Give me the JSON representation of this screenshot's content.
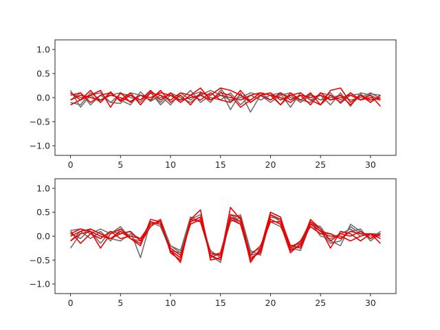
{
  "figure": {
    "background": "#ffffff"
  },
  "colors": {
    "grey_series": "#6f6f6f",
    "red_series": "#ee0000",
    "axes": "#262626"
  },
  "chart_data": [
    {
      "type": "line",
      "title": "",
      "xlabel": "",
      "ylabel": "",
      "xlim": [
        -1.55,
        32.55
      ],
      "ylim": [
        -1.2,
        1.2
      ],
      "xticks": [
        0,
        5,
        10,
        15,
        20,
        25,
        30
      ],
      "xtick_labels": [
        "0",
        "5",
        "10",
        "15",
        "20",
        "25",
        "30"
      ],
      "yticks": [
        1.0,
        0.5,
        0.0,
        -0.5,
        -1.0
      ],
      "ytick_labels": [
        "1.0",
        "0.5",
        "0.0",
        "−0.5",
        "−1.0"
      ],
      "grid": false,
      "legend": "none",
      "x": [
        0,
        1,
        2,
        3,
        4,
        5,
        6,
        7,
        8,
        9,
        10,
        11,
        12,
        13,
        14,
        15,
        16,
        17,
        18,
        19,
        20,
        21,
        22,
        23,
        24,
        25,
        26,
        27,
        28,
        29,
        30,
        31
      ],
      "series": [
        {
          "group": "grey",
          "values": [
            0.15,
            -0.2,
            0.05,
            -0.1,
            0.1,
            -0.05,
            -0.15,
            0.12,
            -0.08,
            0.05,
            -0.15,
            0.1,
            -0.05,
            0.08,
            -0.1,
            0.15,
            -0.25,
            0.1,
            -0.3,
            0.05,
            0.1,
            -0.15,
            0.05,
            -0.1,
            0.08,
            -0.05,
            0.1,
            -0.12,
            0.05,
            0.08,
            -0.1,
            0.05
          ]
        },
        {
          "group": "grey",
          "values": [
            -0.05,
            0.1,
            -0.15,
            0.05,
            -0.1,
            0.08,
            0.05,
            -0.1,
            0.12,
            -0.15,
            0.05,
            -0.05,
            0.15,
            -0.1,
            0.05,
            0.2,
            -0.1,
            0.05,
            -0.05,
            0.1,
            -0.05,
            0.08,
            -0.2,
            0.1,
            -0.05,
            0.05,
            -0.15,
            0.1,
            -0.18,
            0.1,
            0.05,
            -0.05
          ]
        },
        {
          "group": "grey",
          "values": [
            0.1,
            0.0,
            0.05,
            0.1,
            -0.1,
            -0.12,
            0.1,
            0.05,
            -0.05,
            0.0,
            0.05,
            -0.1,
            0.05,
            0.12,
            0.0,
            -0.05,
            0.1,
            -0.15,
            0.05,
            -0.05,
            0.05,
            0.1,
            0.0,
            -0.05,
            -0.1,
            0.1,
            0.05,
            -0.05,
            0.1,
            -0.05,
            0.08,
            0.05
          ]
        },
        {
          "group": "grey",
          "values": [
            -0.1,
            -0.15,
            0.1,
            -0.05,
            0.05,
            0.1,
            0.0,
            -0.05,
            0.1,
            -0.1,
            0.1,
            0.0,
            -0.1,
            0.05,
            0.15,
            0.05,
            -0.05,
            0.0,
            0.1,
            0.05,
            -0.1,
            0.05,
            0.1,
            -0.1,
            0.05,
            -0.05,
            0.0,
            0.05,
            -0.05,
            0.0,
            0.1,
            -0.02
          ]
        },
        {
          "group": "red",
          "values": [
            -0.15,
            -0.05,
            0.15,
            -0.1,
            0.12,
            -0.08,
            0.05,
            -0.05,
            0.15,
            -0.05,
            0.1,
            -0.1,
            0.05,
            0.2,
            -0.05,
            0.1,
            0.05,
            -0.2,
            -0.05,
            0.1,
            0.05,
            -0.15,
            0.1,
            -0.05,
            0.1,
            -0.15,
            0.05,
            -0.1,
            0.1,
            -0.05,
            0.05,
            -0.18
          ]
        },
        {
          "group": "red",
          "values": [
            0.1,
            -0.05,
            0.05,
            0.15,
            -0.2,
            0.1,
            -0.1,
            0.05,
            -0.05,
            0.15,
            -0.1,
            0.05,
            -0.15,
            0.1,
            0.05,
            0.2,
            0.15,
            0.05,
            -0.1,
            0.05,
            -0.05,
            0.1,
            -0.05,
            0.05,
            -0.15,
            0.1,
            -0.05,
            0.05,
            -0.15,
            0.05,
            -0.1,
            0.05
          ]
        },
        {
          "group": "red",
          "values": [
            0.05,
            0.1,
            -0.1,
            0.05,
            0.1,
            -0.05,
            0.1,
            -0.15,
            0.1,
            0.05,
            -0.05,
            0.1,
            0.05,
            -0.05,
            0.1,
            -0.05,
            -0.1,
            0.15,
            -0.1,
            0.05,
            0.1,
            -0.05,
            0.05,
            0.1,
            -0.05,
            -0.15,
            0.15,
            0.2,
            -0.1,
            0.05,
            -0.05,
            0.0
          ]
        },
        {
          "group": "red",
          "values": [
            -0.05,
            0.05,
            0.0,
            -0.05,
            0.05,
            0.0,
            -0.08,
            0.05,
            0.0,
            0.1,
            0.05,
            -0.05,
            0.0,
            0.05,
            -0.05,
            0.05,
            0.0,
            -0.05,
            0.05,
            0.1,
            0.05,
            0.0,
            -0.1,
            0.05,
            0.0,
            0.05,
            -0.05,
            0.0,
            0.05,
            -0.05,
            0.0,
            -0.05
          ]
        }
      ]
    },
    {
      "type": "line",
      "title": "",
      "xlabel": "",
      "ylabel": "",
      "xlim": [
        -1.55,
        32.55
      ],
      "ylim": [
        -1.2,
        1.2
      ],
      "xticks": [
        0,
        5,
        10,
        15,
        20,
        25,
        30
      ],
      "xtick_labels": [
        "0",
        "5",
        "10",
        "15",
        "20",
        "25",
        "30"
      ],
      "yticks": [
        1.0,
        0.5,
        0.0,
        -0.5,
        -1.0
      ],
      "ytick_labels": [
        "1.0",
        "0.5",
        "0.0",
        "−0.5",
        "−1.0"
      ],
      "grid": false,
      "legend": "none",
      "x": [
        0,
        1,
        2,
        3,
        4,
        5,
        6,
        7,
        8,
        9,
        10,
        11,
        12,
        13,
        14,
        15,
        16,
        17,
        18,
        19,
        20,
        21,
        22,
        23,
        24,
        25,
        26,
        27,
        28,
        29,
        30,
        31
      ],
      "series": [
        {
          "group": "grey",
          "values": [
            0.12,
            0.15,
            0.05,
            0.15,
            0.05,
            0.2,
            -0.05,
            -0.1,
            0.3,
            0.2,
            -0.3,
            -0.45,
            0.4,
            0.3,
            -0.4,
            -0.55,
            0.4,
            0.25,
            -0.5,
            -0.3,
            0.45,
            0.3,
            -0.3,
            -0.2,
            0.3,
            0.1,
            -0.15,
            -0.1,
            0.2,
            0.05,
            0.0,
            0.05
          ]
        },
        {
          "group": "grey",
          "values": [
            -0.25,
            0.05,
            0.1,
            -0.15,
            0.1,
            0.05,
            0.1,
            -0.45,
            0.3,
            0.25,
            -0.3,
            -0.35,
            0.35,
            0.45,
            -0.35,
            -0.4,
            0.3,
            0.4,
            -0.4,
            -0.35,
            0.5,
            0.4,
            -0.25,
            -0.3,
            0.25,
            0.2,
            -0.1,
            -0.2,
            0.25,
            0.1,
            -0.05,
            0.1
          ]
        },
        {
          "group": "grey",
          "values": [
            0.05,
            -0.05,
            0.15,
            0.05,
            -0.05,
            -0.1,
            0.05,
            -0.05,
            0.2,
            0.35,
            -0.2,
            -0.3,
            0.4,
            0.3,
            -0.3,
            -0.45,
            0.45,
            0.3,
            -0.35,
            -0.25,
            0.3,
            0.2,
            -0.2,
            -0.15,
            0.2,
            0.05,
            0.05,
            -0.05,
            0.1,
            0.15,
            -0.1,
            0.05
          ]
        },
        {
          "group": "grey",
          "values": [
            -0.1,
            0.1,
            -0.05,
            0.1,
            -0.1,
            0.15,
            0.0,
            -0.05,
            0.25,
            0.3,
            -0.2,
            -0.35,
            0.3,
            0.4,
            -0.4,
            -0.35,
            0.35,
            0.45,
            -0.3,
            -0.4,
            0.4,
            0.35,
            -0.3,
            -0.1,
            0.3,
            0.0,
            -0.05,
            0.05,
            0.15,
            0.0,
            0.05,
            0.05
          ]
        },
        {
          "group": "red",
          "values": [
            0.05,
            0.15,
            0.1,
            -0.25,
            0.05,
            0.15,
            -0.05,
            -0.2,
            0.35,
            0.3,
            -0.3,
            -0.55,
            0.35,
            0.55,
            -0.5,
            -0.45,
            0.6,
            0.35,
            -0.55,
            -0.25,
            0.5,
            0.4,
            -0.3,
            -0.2,
            0.35,
            0.15,
            -0.25,
            0.1,
            0.05,
            -0.1,
            0.05,
            -0.15
          ]
        },
        {
          "group": "red",
          "values": [
            0.0,
            0.1,
            0.15,
            0.05,
            -0.05,
            0.1,
            -0.05,
            -0.15,
            0.2,
            0.35,
            -0.35,
            -0.5,
            0.3,
            0.4,
            -0.45,
            -0.35,
            0.4,
            0.3,
            -0.5,
            -0.3,
            0.35,
            0.25,
            -0.35,
            -0.15,
            0.3,
            0.15,
            -0.1,
            0.05,
            0.0,
            0.1,
            -0.05,
            0.05
          ]
        },
        {
          "group": "red",
          "values": [
            -0.1,
            0.05,
            0.1,
            0.0,
            -0.05,
            0.05,
            0.1,
            -0.1,
            0.3,
            0.25,
            -0.25,
            -0.4,
            0.25,
            0.35,
            -0.4,
            -0.5,
            0.45,
            0.4,
            -0.45,
            -0.35,
            0.45,
            0.35,
            -0.2,
            -0.25,
            0.25,
            0.1,
            0.05,
            -0.05,
            0.1,
            0.05,
            0.05,
            0.0
          ]
        },
        {
          "group": "red",
          "values": [
            0.1,
            -0.15,
            0.05,
            -0.05,
            0.1,
            -0.05,
            0.0,
            -0.05,
            0.25,
            0.3,
            -0.3,
            -0.45,
            0.35,
            0.3,
            -0.35,
            -0.4,
            0.35,
            0.25,
            -0.4,
            -0.2,
            0.3,
            0.3,
            -0.25,
            -0.1,
            0.2,
            0.05,
            0.0,
            0.0,
            -0.1,
            0.0,
            0.05,
            -0.05
          ]
        }
      ]
    }
  ]
}
